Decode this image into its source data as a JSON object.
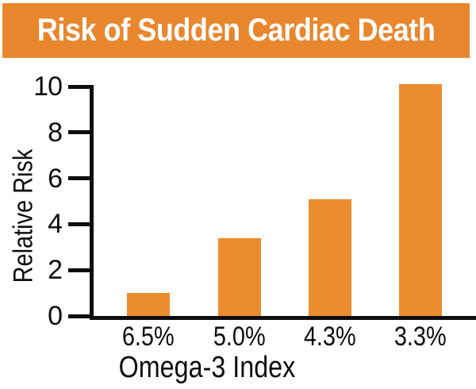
{
  "header": {
    "title": "Risk of Sudden Cardiac Death"
  },
  "chart_data": {
    "type": "bar",
    "title": "Risk of Sudden Cardiac Death",
    "categories": [
      "6.5%",
      "5.0%",
      "4.3%",
      "3.3%"
    ],
    "values": [
      1.0,
      3.4,
      5.1,
      10.1
    ],
    "xlabel": "Omega-3 Index",
    "ylabel": "Relative Risk",
    "ylim": [
      0,
      10
    ],
    "y_ticks": [
      10,
      8,
      6,
      4,
      2,
      0
    ],
    "grid": false,
    "legend": "none",
    "bar_color": "#EB8C2E"
  },
  "colors": {
    "banner_background": "#E8872E",
    "bar": "#EB8C2E",
    "title_text": "#FFFFFF",
    "axis_text": "#0D0D0D",
    "background": "#FFFFFF"
  }
}
